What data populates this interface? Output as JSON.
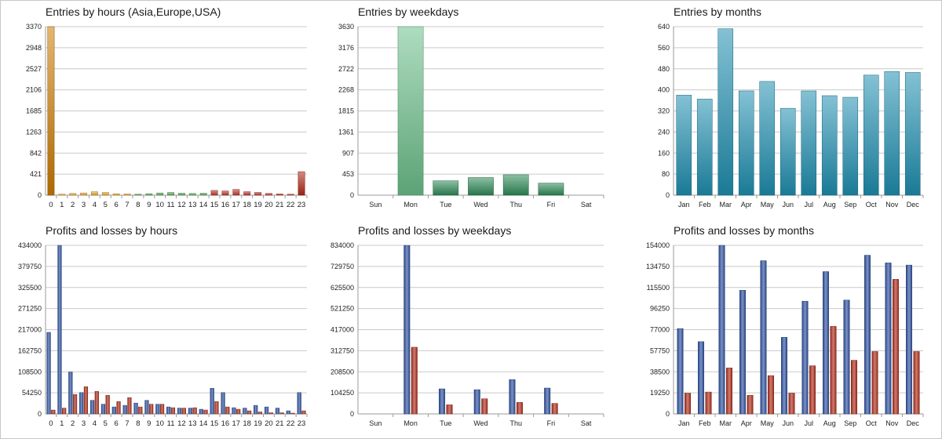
{
  "chart_data": [
    {
      "id": "entries-hours",
      "type": "bar",
      "title": "Entries by hours (Asia,Europe,USA)",
      "categories": [
        "0",
        "1",
        "2",
        "3",
        "4",
        "5",
        "6",
        "7",
        "8",
        "9",
        "10",
        "11",
        "12",
        "13",
        "14",
        "15",
        "16",
        "17",
        "18",
        "19",
        "20",
        "21",
        "22",
        "23"
      ],
      "yticks": [
        "0",
        "421",
        "842",
        "1263",
        "1685",
        "2106",
        "2527",
        "2948",
        "3370"
      ],
      "ylim": [
        0,
        3370
      ],
      "series": [
        {
          "values": [
            3370,
            20,
            35,
            45,
            70,
            55,
            30,
            25,
            20,
            30,
            45,
            55,
            40,
            35,
            40,
            95,
            85,
            115,
            70,
            55,
            35,
            25,
            20,
            470
          ]
        }
      ],
      "bar_colors": [
        "#cc7a00",
        "#f0a830",
        "#f0a830",
        "#f0a830",
        "#f0a830",
        "#f0a830",
        "#f0a830",
        "#f0a830",
        "#5fae5a",
        "#5fae5a",
        "#5fae5a",
        "#5fae5a",
        "#5fae5a",
        "#5fae5a",
        "#5fae5a",
        "#c0392b",
        "#c0392b",
        "#c0392b",
        "#c0392b",
        "#c0392b",
        "#c0392b",
        "#c0392b",
        "#c0392b",
        "#b02818"
      ]
    },
    {
      "id": "entries-weekdays",
      "type": "bar",
      "title": "Entries by weekdays",
      "categories": [
        "Sun",
        "Mon",
        "Tue",
        "Wed",
        "Thu",
        "Fri",
        "Sat"
      ],
      "yticks": [
        "0",
        "453",
        "907",
        "1361",
        "1815",
        "2268",
        "2722",
        "3176",
        "3630"
      ],
      "ylim": [
        0,
        3630
      ],
      "series": [
        {
          "values": [
            0,
            3630,
            310,
            380,
            440,
            260,
            0
          ]
        }
      ],
      "bar_colors": [
        "#2e8b57",
        "#6cc08b",
        "#2e8b57",
        "#2e8b57",
        "#2e8b57",
        "#2e8b57",
        "#2e8b57"
      ]
    },
    {
      "id": "entries-months",
      "type": "bar",
      "title": "Entries by months",
      "categories": [
        "Jan",
        "Feb",
        "Mar",
        "Apr",
        "May",
        "Jun",
        "Jul",
        "Aug",
        "Sep",
        "Oct",
        "Nov",
        "Dec"
      ],
      "yticks": [
        "0",
        "80",
        "160",
        "240",
        "320",
        "400",
        "480",
        "560",
        "640"
      ],
      "ylim": [
        0,
        640
      ],
      "series": [
        {
          "values": [
            380,
            365,
            632,
            396,
            432,
            330,
            396,
            378,
            372,
            456,
            470,
            466
          ]
        }
      ],
      "bar_colors": [
        "#1f8fb0"
      ]
    },
    {
      "id": "pl-hours",
      "type": "bar",
      "title": "Profits and losses by hours",
      "categories": [
        "0",
        "1",
        "2",
        "3",
        "4",
        "5",
        "6",
        "7",
        "8",
        "9",
        "10",
        "11",
        "12",
        "13",
        "14",
        "15",
        "16",
        "17",
        "18",
        "19",
        "20",
        "21",
        "22",
        "23"
      ],
      "yticks": [
        "0",
        "54250",
        "108500",
        "162750",
        "217000",
        "271250",
        "325500",
        "379750",
        "434000"
      ],
      "ylim": [
        0,
        434000
      ],
      "series": [
        {
          "values": [
            210000,
            434000,
            108000,
            55000,
            35000,
            25000,
            18000,
            22000,
            28000,
            35000,
            25000,
            18000,
            15000,
            15000,
            12000,
            66000,
            55000,
            16000,
            15000,
            22000,
            18000,
            15000,
            8000,
            55000
          ]
        },
        {
          "values": [
            10000,
            15000,
            50000,
            70000,
            58000,
            48000,
            32000,
            42000,
            18000,
            25000,
            25000,
            16000,
            15000,
            16000,
            10000,
            32000,
            18000,
            12000,
            8000,
            5000,
            3000,
            3000,
            2000,
            8000
          ]
        }
      ],
      "series_colors": [
        "#3559a8",
        "#b73522"
      ]
    },
    {
      "id": "pl-weekdays",
      "type": "bar",
      "title": "Profits and losses by weekdays",
      "categories": [
        "Sun",
        "Mon",
        "Tue",
        "Wed",
        "Thu",
        "Fri",
        "Sat"
      ],
      "yticks": [
        "0",
        "104250",
        "208500",
        "312750",
        "417000",
        "521250",
        "625500",
        "729750",
        "834000"
      ],
      "ylim": [
        0,
        834000
      ],
      "series": [
        {
          "values": [
            0,
            834000,
            124000,
            120000,
            170000,
            128000,
            0
          ]
        },
        {
          "values": [
            0,
            330000,
            45000,
            75000,
            57000,
            52000,
            0
          ]
        }
      ],
      "series_colors": [
        "#3559a8",
        "#b73522"
      ]
    },
    {
      "id": "pl-months",
      "type": "bar",
      "title": "Profits and losses by months",
      "categories": [
        "Jan",
        "Feb",
        "Mar",
        "Apr",
        "May",
        "Jun",
        "Jul",
        "Aug",
        "Sep",
        "Oct",
        "Nov",
        "Dec"
      ],
      "yticks": [
        "0",
        "19250",
        "38500",
        "57750",
        "77000",
        "96250",
        "115500",
        "134750",
        "154000"
      ],
      "ylim": [
        0,
        154000
      ],
      "series": [
        {
          "values": [
            78000,
            66000,
            154000,
            113000,
            140000,
            70000,
            103000,
            130000,
            104000,
            145000,
            138000,
            136000
          ]
        },
        {
          "values": [
            19000,
            20000,
            42000,
            17000,
            35000,
            19000,
            44000,
            80000,
            49000,
            57000,
            123000,
            57000
          ]
        }
      ],
      "series_colors": [
        "#3559a8",
        "#b73522"
      ]
    }
  ]
}
